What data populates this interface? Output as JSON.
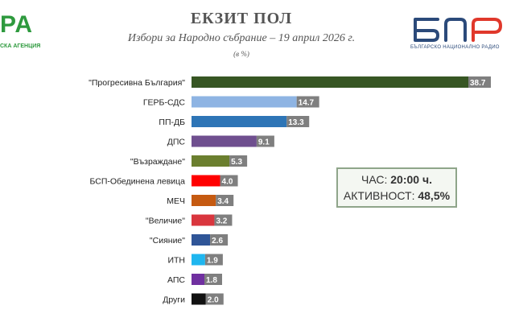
{
  "logo_left": {
    "big_text": "РА",
    "small_text": "СКА АГЕНЦИЯ"
  },
  "logo_right": {
    "brand_name": "bnr-logo",
    "caption": "БЪЛГАРСКО НАЦИОНАЛНО РАДИО"
  },
  "info_box": {
    "time_label": "ЧАС:",
    "time_value": "20:00 ч.",
    "turnout_label": "АКТИВНОСТ:",
    "turnout_value": "48,5%"
  },
  "colors": {
    "value_label_bg": "#7f7f7f",
    "value_label_text": "#ffffff",
    "brand_green": "#2e9a3e",
    "brand_blue": "#2b4a7a"
  },
  "chart_data": {
    "type": "bar",
    "orientation": "horizontal",
    "title": "ЕКЗИТ ПОЛ",
    "subtitle": "Избори за Народно събрание – 19 април 2026 г.",
    "unit_label": "(в %)",
    "xlim": [
      0,
      40
    ],
    "grid": false,
    "categories": [
      "\"Прогресивна България\"",
      "ГЕРБ-СДС",
      "ПП-ДБ",
      "ДПС",
      "\"Възраждане\"",
      "БСП-Обединена левица",
      "МЕЧ",
      "\"Величие\"",
      "\"Сияние\"",
      "ИТН",
      "АПС",
      "Други"
    ],
    "values": [
      38.7,
      14.7,
      13.3,
      9.1,
      5.3,
      4.0,
      3.4,
      3.2,
      2.6,
      1.9,
      1.8,
      2.0
    ],
    "value_labels": [
      "38.7",
      "14.7",
      "13.3",
      "9.1",
      "5.3",
      "4.0",
      "3.4",
      "3.2",
      "2.6",
      "1.9",
      "1.8",
      "2.0"
    ],
    "bar_colors": [
      "#375623",
      "#8eb4e3",
      "#2e75b6",
      "#6f4f8f",
      "#6b7f2f",
      "#ff0000",
      "#c55a11",
      "#d9363e",
      "#2f5597",
      "#1fb6ef",
      "#7030a0",
      "#111111"
    ]
  }
}
